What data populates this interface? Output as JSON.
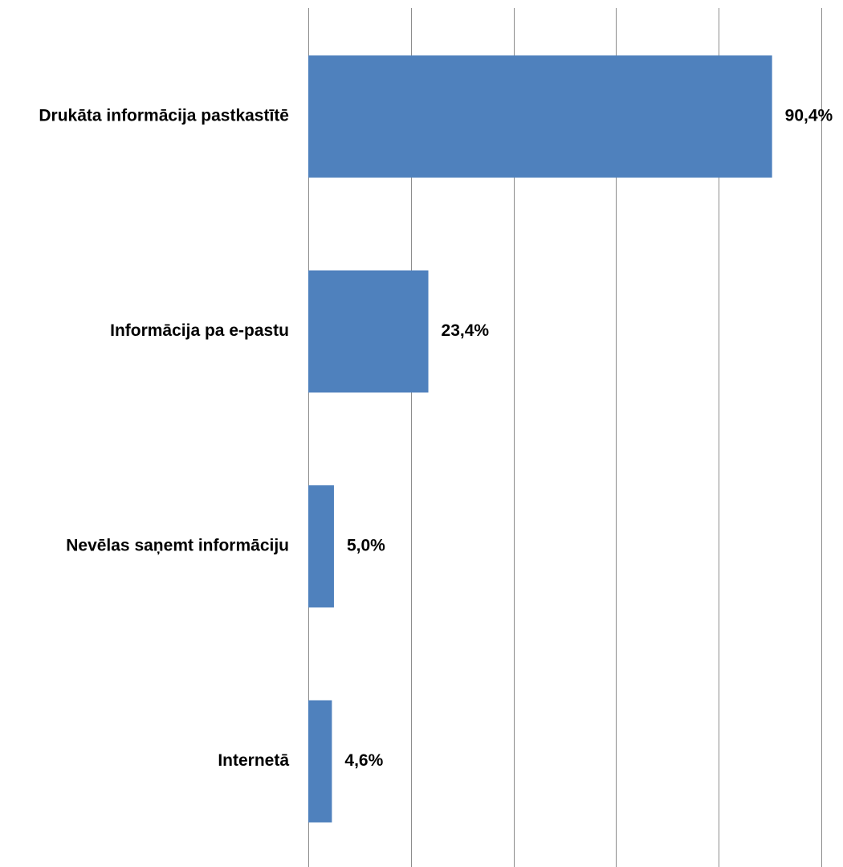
{
  "chart_data": {
    "type": "bar",
    "orientation": "horizontal",
    "categories": [
      "Drukāta informācija pastkastītē",
      "Informācija pa e-pastu",
      "Nevēlas saņemt informāciju",
      "Internetā"
    ],
    "values": [
      90.4,
      23.4,
      5.0,
      4.6
    ],
    "value_labels": [
      "90,4%",
      "23,4%",
      "5,0%",
      "4,6%"
    ],
    "unit": "%",
    "xlim": [
      0,
      100
    ],
    "gridlines": [
      0,
      20,
      40,
      60,
      80,
      100
    ],
    "grid": true,
    "legend": "none",
    "bar_color": "#4f81bd"
  }
}
